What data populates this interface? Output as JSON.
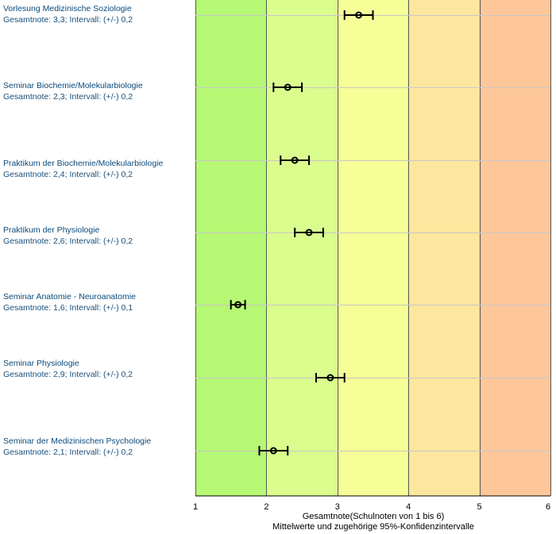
{
  "chart_data": {
    "type": "scatter",
    "title": "",
    "xlabel": "Gesamtnote(Schulnoten von 1 bis 6)",
    "xlabel_sub": "Mittelwerte und zugehörige 95%-Konfidenzintervalle",
    "xlim": [
      1,
      6
    ],
    "x_ticks": [
      "1",
      "2",
      "3",
      "4",
      "5",
      "6"
    ],
    "bands": [
      {
        "from": 1,
        "to": 2,
        "color": "#b6f774"
      },
      {
        "from": 2,
        "to": 3,
        "color": "#dafd8e"
      },
      {
        "from": 3,
        "to": 4,
        "color": "#f6fe98"
      },
      {
        "from": 4,
        "to": 5,
        "color": "#fde79f"
      },
      {
        "from": 5,
        "to": 6,
        "color": "#fec79a"
      }
    ],
    "items": [
      {
        "name": "Vorlesung Medizinische Soziologie",
        "detail": "Gesamtnote: 3,3;  Intervall: (+/-) 0,2",
        "mean": 3.3,
        "ci": 0.2
      },
      {
        "name": "Seminar Biochemie/Molekularbiologie",
        "detail": "Gesamtnote: 2,3;  Intervall: (+/-) 0,2",
        "mean": 2.3,
        "ci": 0.2
      },
      {
        "name": "Praktikum der Biochemie/Molekularbiologie",
        "detail": "Gesamtnote: 2,4;  Intervall: (+/-) 0,2",
        "mean": 2.4,
        "ci": 0.2
      },
      {
        "name": "Praktikum der Physiologie",
        "detail": "Gesamtnote: 2,6;  Intervall: (+/-) 0,2",
        "mean": 2.6,
        "ci": 0.2
      },
      {
        "name": "Seminar Anatomie - Neuroanatomie",
        "detail": "Gesamtnote: 1,6;  Intervall: (+/-) 0,1",
        "mean": 1.6,
        "ci": 0.1
      },
      {
        "name": "Seminar Physiologie",
        "detail": "Gesamtnote: 2,9;  Intervall: (+/-) 0,2",
        "mean": 2.9,
        "ci": 0.2
      },
      {
        "name": "Seminar der Medizinischen Psychologie",
        "detail": "Gesamtnote: 2,1;  Intervall: (+/-) 0,2",
        "mean": 2.1,
        "ci": 0.2
      }
    ]
  }
}
